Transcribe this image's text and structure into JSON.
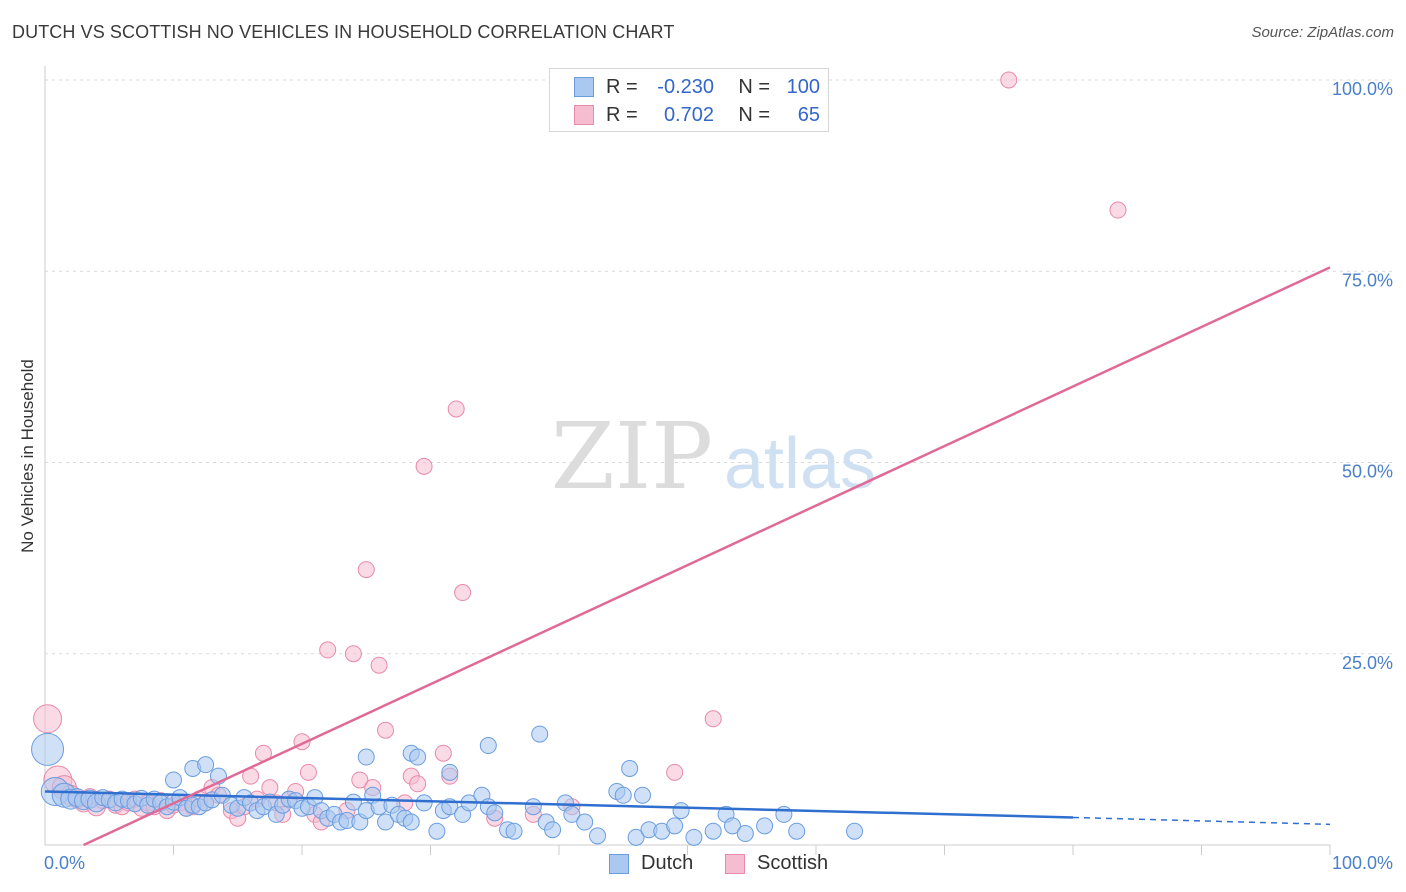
{
  "title": "DUTCH VS SCOTTISH NO VEHICLES IN HOUSEHOLD CORRELATION CHART",
  "source": "Source: ZipAtlas.com",
  "watermark": {
    "zip": "ZIP",
    "atlas": "atlas"
  },
  "legend": {
    "rows": [
      {
        "r_label": "R =",
        "r_value": "-0.230",
        "n_label": "N =",
        "n_value": "100"
      },
      {
        "r_label": "R =",
        "r_value": "0.702",
        "n_label": "N =",
        "n_value": "65"
      }
    ]
  },
  "bottom_legend": {
    "dutch": "Dutch",
    "scottish": "Scottish"
  },
  "colors": {
    "dutch_fill": "#aac8f0",
    "dutch_stroke": "#6a9de0",
    "dutch_line": "#2f6fcf",
    "scottish_fill": "#f6bcd0",
    "scottish_stroke": "#e88aaa",
    "scottish_line": "#e06a97",
    "tick": "#4a7fc9",
    "grid": "#d8d8d8"
  },
  "chart_data": {
    "type": "scatter",
    "title": "DUTCH VS SCOTTISH NO VEHICLES IN HOUSEHOLD CORRELATION CHART",
    "xlabel": "",
    "ylabel": "No Vehicles in Household",
    "xlim": [
      0,
      100
    ],
    "ylim": [
      0,
      100
    ],
    "x_tick_labels": [
      "0.0%",
      "100.0%"
    ],
    "y_ticks": [
      25,
      50,
      75,
      100
    ],
    "y_tick_labels": [
      "25.0%",
      "50.0%",
      "75.0%",
      "100.0%"
    ],
    "grid": true,
    "legend_position": "top-center",
    "series": [
      {
        "name": "Dutch",
        "r": -0.23,
        "n": 100,
        "trend": {
          "x0": 0,
          "y0": 7.0,
          "x1": 80,
          "y1": 3.6,
          "dashed_to_x": 100,
          "dashed_to_y": 2.7
        },
        "points": [
          [
            0.2,
            12.5,
            16
          ],
          [
            0.8,
            7,
            14
          ],
          [
            1.5,
            6.5,
            12
          ],
          [
            2.0,
            6.0,
            10
          ],
          [
            2.5,
            6.2,
            9
          ],
          [
            3.0,
            5.8,
            9
          ],
          [
            3.5,
            6.0,
            9
          ],
          [
            4.0,
            5.5,
            9
          ],
          [
            4.5,
            6.2,
            8
          ],
          [
            5.0,
            5.9,
            8
          ],
          [
            5.5,
            5.5,
            8
          ],
          [
            6.0,
            6.0,
            8
          ],
          [
            6.5,
            5.8,
            8
          ],
          [
            7.0,
            5.4,
            8
          ],
          [
            7.5,
            6.1,
            8
          ],
          [
            8.0,
            5.2,
            8
          ],
          [
            8.5,
            6.0,
            8
          ],
          [
            9.0,
            5.5,
            8
          ],
          [
            9.5,
            5.0,
            8
          ],
          [
            10.0,
            5.6,
            8
          ],
          [
            10.5,
            6.2,
            8
          ],
          [
            11.0,
            4.8,
            8
          ],
          [
            11.5,
            5.2,
            8
          ],
          [
            12.0,
            5.0,
            8
          ],
          [
            12.5,
            5.5,
            8
          ],
          [
            13.0,
            5.9,
            8
          ],
          [
            13.8,
            6.5,
            8
          ],
          [
            14.5,
            5.2,
            8
          ],
          [
            15.0,
            4.8,
            8
          ],
          [
            15.5,
            6.2,
            8
          ],
          [
            16.0,
            5.5,
            8
          ],
          [
            16.5,
            4.5,
            8
          ],
          [
            17.0,
            5.0,
            8
          ],
          [
            17.5,
            5.6,
            8
          ],
          [
            18.0,
            4.0,
            8
          ],
          [
            18.5,
            5.2,
            8
          ],
          [
            19.0,
            6.0,
            8
          ],
          [
            19.5,
            5.8,
            8
          ],
          [
            20.0,
            4.8,
            8
          ],
          [
            20.5,
            5.0,
            8
          ],
          [
            21.0,
            6.2,
            8
          ],
          [
            21.5,
            4.5,
            8
          ],
          [
            22.0,
            3.5,
            8
          ],
          [
            22.5,
            4.0,
            8
          ],
          [
            23.0,
            3.0,
            8
          ],
          [
            23.5,
            3.2,
            8
          ],
          [
            24.0,
            5.6,
            8
          ],
          [
            24.5,
            3.0,
            8
          ],
          [
            25.0,
            4.5,
            8
          ],
          [
            25.5,
            6.5,
            8
          ],
          [
            26.0,
            5.0,
            8
          ],
          [
            26.5,
            3.0,
            8
          ],
          [
            27.0,
            5.2,
            8
          ],
          [
            27.5,
            4.0,
            8
          ],
          [
            28.0,
            3.5,
            8
          ],
          [
            28.5,
            3.0,
            8
          ],
          [
            29.5,
            5.5,
            8
          ],
          [
            30.5,
            1.8,
            8
          ],
          [
            31.0,
            4.5,
            8
          ],
          [
            31.5,
            5.0,
            8
          ],
          [
            32.5,
            4.0,
            8
          ],
          [
            33.0,
            5.5,
            8
          ],
          [
            34.0,
            6.5,
            8
          ],
          [
            34.5,
            5.0,
            8
          ],
          [
            35.0,
            4.2,
            8
          ],
          [
            36.0,
            2.0,
            8
          ],
          [
            36.5,
            1.8,
            8
          ],
          [
            38.0,
            5.0,
            8
          ],
          [
            39.0,
            3.0,
            8
          ],
          [
            39.5,
            2.0,
            8
          ],
          [
            40.5,
            5.5,
            8
          ],
          [
            41.0,
            4.0,
            8
          ],
          [
            42.0,
            3.0,
            8
          ],
          [
            43.0,
            1.2,
            8
          ],
          [
            44.5,
            7.0,
            8
          ],
          [
            45.0,
            6.5,
            8
          ],
          [
            46.0,
            1.0,
            8
          ],
          [
            47.0,
            2.0,
            8
          ],
          [
            48.0,
            1.8,
            8
          ],
          [
            49.5,
            4.5,
            8
          ],
          [
            50.5,
            1.0,
            8
          ],
          [
            52.0,
            1.8,
            8
          ],
          [
            53.0,
            4.0,
            8
          ],
          [
            53.5,
            2.5,
            8
          ],
          [
            54.5,
            1.5,
            8
          ],
          [
            56.0,
            2.5,
            8
          ],
          [
            57.5,
            4.0,
            8
          ],
          [
            58.5,
            1.8,
            8
          ],
          [
            10.0,
            8.5,
            8
          ],
          [
            11.5,
            10.0,
            8
          ],
          [
            12.5,
            10.5,
            8
          ],
          [
            13.5,
            9.0,
            8
          ],
          [
            25.0,
            11.5,
            8
          ],
          [
            28.5,
            12.0,
            8
          ],
          [
            29.0,
            11.5,
            8
          ],
          [
            31.5,
            9.5,
            8
          ],
          [
            34.5,
            13.0,
            8
          ],
          [
            38.5,
            14.5,
            8
          ],
          [
            45.5,
            10.0,
            8
          ],
          [
            46.5,
            6.5,
            8
          ],
          [
            49.0,
            2.5,
            8
          ],
          [
            63.0,
            1.8,
            8
          ]
        ]
      },
      {
        "name": "Scottish",
        "r": 0.702,
        "n": 65,
        "trend": {
          "x0": 3,
          "y0": 0,
          "x1": 100,
          "y1": 75.5
        },
        "points": [
          [
            0.2,
            16.5,
            14
          ],
          [
            1.0,
            8.5,
            14
          ],
          [
            1.5,
            7.5,
            12
          ],
          [
            2.0,
            6.5,
            10
          ],
          [
            2.5,
            6.0,
            9
          ],
          [
            3.0,
            5.5,
            9
          ],
          [
            3.5,
            6.2,
            9
          ],
          [
            4.0,
            5.0,
            9
          ],
          [
            4.5,
            5.8,
            8
          ],
          [
            5.0,
            6.0,
            8
          ],
          [
            5.5,
            5.2,
            8
          ],
          [
            6.0,
            5.0,
            8
          ],
          [
            6.5,
            5.5,
            8
          ],
          [
            7.0,
            6.0,
            8
          ],
          [
            7.5,
            4.8,
            8
          ],
          [
            8.0,
            5.5,
            8
          ],
          [
            8.5,
            5.0,
            8
          ],
          [
            9.0,
            5.8,
            8
          ],
          [
            9.5,
            4.5,
            8
          ],
          [
            10.0,
            5.2,
            8
          ],
          [
            10.5,
            5.5,
            8
          ],
          [
            11.0,
            4.8,
            8
          ],
          [
            11.5,
            5.0,
            8
          ],
          [
            12.0,
            6.0,
            8
          ],
          [
            12.5,
            5.5,
            8
          ],
          [
            13.0,
            7.5,
            8
          ],
          [
            13.5,
            6.5,
            8
          ],
          [
            14.5,
            4.5,
            8
          ],
          [
            15.0,
            3.5,
            8
          ],
          [
            15.5,
            5.0,
            8
          ],
          [
            16.0,
            9.0,
            8
          ],
          [
            16.5,
            6.0,
            8
          ],
          [
            17.0,
            12.0,
            8
          ],
          [
            17.5,
            7.5,
            8
          ],
          [
            18.0,
            5.5,
            8
          ],
          [
            18.5,
            4.0,
            8
          ],
          [
            19.0,
            6.0,
            8
          ],
          [
            19.5,
            7.0,
            8
          ],
          [
            20.0,
            13.5,
            8
          ],
          [
            20.5,
            9.5,
            8
          ],
          [
            21.0,
            4.0,
            8
          ],
          [
            21.5,
            3.0,
            8
          ],
          [
            22.0,
            25.5,
            8
          ],
          [
            23.5,
            4.5,
            8
          ],
          [
            24.0,
            25.0,
            8
          ],
          [
            24.5,
            8.5,
            8
          ],
          [
            25.0,
            36.0,
            8
          ],
          [
            25.5,
            7.5,
            8
          ],
          [
            26.0,
            23.5,
            8
          ],
          [
            26.5,
            15.0,
            8
          ],
          [
            28.0,
            5.5,
            8
          ],
          [
            28.5,
            9.0,
            8
          ],
          [
            29.0,
            8.0,
            8
          ],
          [
            29.5,
            49.5,
            8
          ],
          [
            31.0,
            12.0,
            8
          ],
          [
            31.5,
            9.0,
            8
          ],
          [
            32.0,
            57.0,
            8
          ],
          [
            32.5,
            33.0,
            8
          ],
          [
            35.0,
            3.5,
            8
          ],
          [
            38.0,
            4.0,
            8
          ],
          [
            41.0,
            5.0,
            8
          ],
          [
            49.0,
            9.5,
            8
          ],
          [
            52.0,
            16.5,
            8
          ],
          [
            75.0,
            100.0,
            8
          ],
          [
            83.5,
            83.0,
            8
          ]
        ]
      }
    ]
  }
}
